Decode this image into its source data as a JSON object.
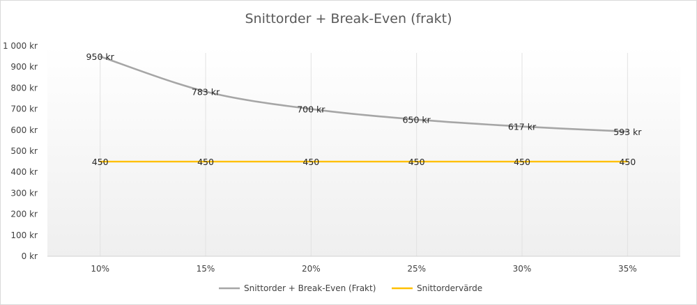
{
  "chart_data": {
    "type": "line",
    "title": "Snittorder  + Break-Even  (frakt)",
    "categories": [
      "10%",
      "15%",
      "20%",
      "25%",
      "30%",
      "35%"
    ],
    "y_ticks": [
      "0 kr",
      "100 kr",
      "200 kr",
      "300 kr",
      "400 kr",
      "500 kr",
      "600 kr",
      "700 kr",
      "800 kr",
      "900 kr",
      "1 000 kr"
    ],
    "ylim": [
      0,
      1000
    ],
    "xlabel": "",
    "ylabel": "",
    "grid": "vertical",
    "legend_position": "bottom",
    "series": [
      {
        "name": "Snittorder + Break-Even (Frakt)",
        "values": [
          950,
          783,
          700,
          650,
          617,
          593
        ],
        "labels": [
          "950 kr",
          "783 kr",
          "700 kr",
          "650 kr",
          "617 kr",
          "593 kr"
        ],
        "color": "#a6a6a6"
      },
      {
        "name": "Snittordervärde",
        "values": [
          450,
          450,
          450,
          450,
          450,
          450
        ],
        "labels": [
          "450",
          "450",
          "450",
          "450",
          "450",
          "450"
        ],
        "color": "#ffc000"
      }
    ]
  }
}
